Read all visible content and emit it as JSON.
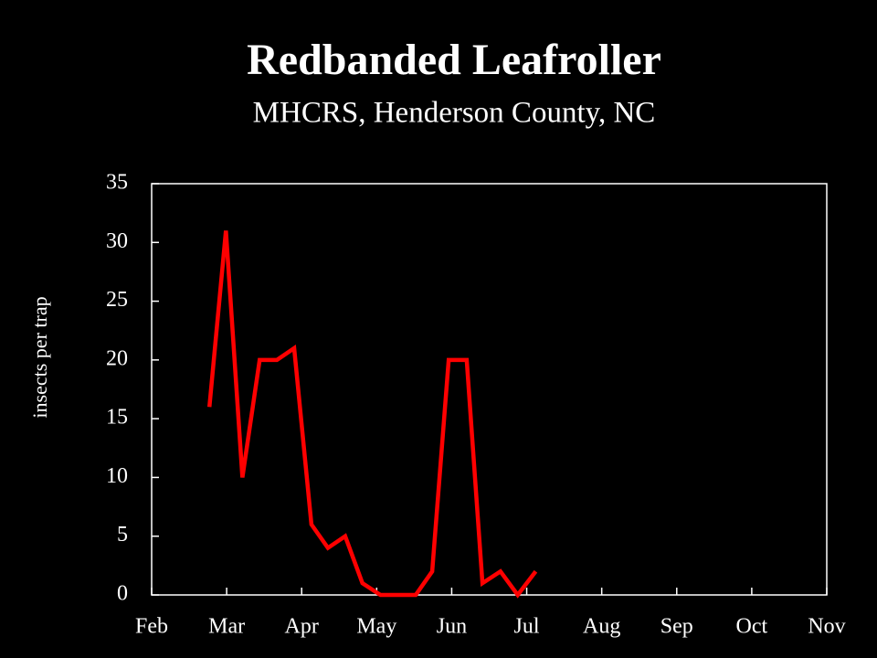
{
  "chart_data": {
    "type": "line",
    "title": "Redbanded Leafroller",
    "subtitle": "MHCRS, Henderson County, NC",
    "y_label": "insects per trap",
    "x": [
      0.77,
      0.99,
      1.21,
      1.44,
      1.67,
      1.9,
      2.13,
      2.35,
      2.58,
      2.81,
      3.05,
      3.28,
      3.52,
      3.74,
      3.96,
      4.2,
      4.41,
      4.65,
      4.88,
      5.12
    ],
    "series": [
      {
        "name": "Redbanded Leafroller",
        "color": "#ff0000",
        "values": [
          16,
          31,
          10,
          20,
          20,
          21,
          6,
          4,
          5,
          1,
          0,
          0,
          0,
          2,
          20,
          20,
          1,
          2,
          0,
          2
        ]
      }
    ],
    "xlim": [
      0,
      9
    ],
    "xticks": [
      {
        "value": 0,
        "label": "Feb"
      },
      {
        "value": 1,
        "label": "Mar"
      },
      {
        "value": 2,
        "label": "Apr"
      },
      {
        "value": 3,
        "label": "May"
      },
      {
        "value": 4,
        "label": "Jun"
      },
      {
        "value": 5,
        "label": "Jul"
      },
      {
        "value": 6,
        "label": "Aug"
      },
      {
        "value": 7,
        "label": "Sep"
      },
      {
        "value": 8,
        "label": "Oct"
      },
      {
        "value": 9,
        "label": "Nov"
      }
    ],
    "ylim": [
      0,
      35
    ],
    "yticks": [
      0,
      5,
      10,
      15,
      20,
      25,
      30,
      35
    ],
    "grid": false
  }
}
